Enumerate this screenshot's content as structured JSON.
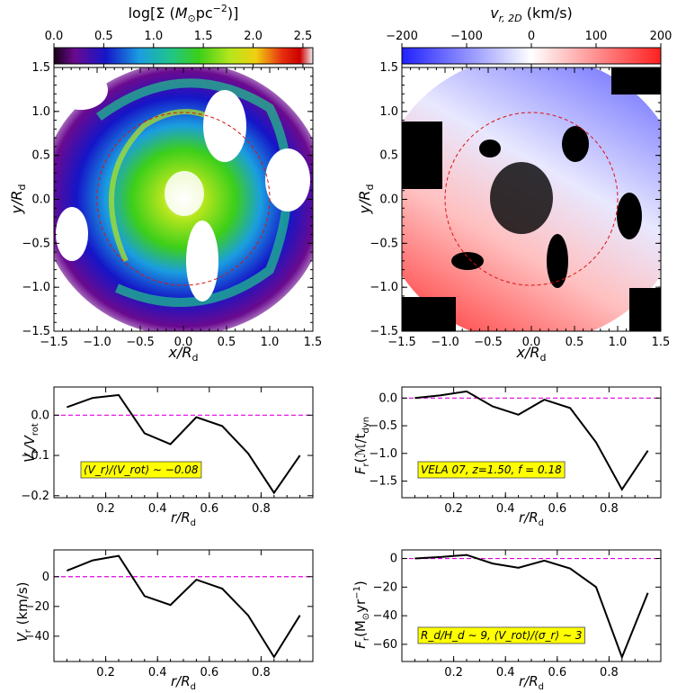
{
  "chart_data": [
    {
      "id": "sigma_map",
      "type": "heatmap",
      "xlabel": "x/R_d",
      "ylabel": "y/R_d",
      "xlim": [
        -1.5,
        1.5
      ],
      "ylim": [
        -1.5,
        1.5
      ],
      "xticks": [
        -1.5,
        -1.0,
        -0.5,
        0.0,
        0.5,
        1.0,
        1.5
      ],
      "yticks": [
        -1.5,
        -1.0,
        -0.5,
        0.0,
        0.5,
        1.0,
        1.5
      ],
      "xtick_labels": [
        "−1.5",
        "−1.0",
        "−0.5",
        "0.0",
        "0.5",
        "1.0",
        "1.5"
      ],
      "ytick_labels": [
        "−1.5",
        "−1.0",
        "−0.5",
        "0.0",
        "0.5",
        "1.0",
        "1.5"
      ],
      "colorbar": {
        "label": "log[Σ (M⊙pc⁻²)]",
        "range": [
          0.0,
          2.6
        ],
        "ticks": [
          0.0,
          0.5,
          1.0,
          1.5,
          2.0,
          2.5
        ],
        "tick_labels": [
          "0.0",
          "0.5",
          "1.0",
          "1.5",
          "2.0",
          "2.5"
        ],
        "colors": [
          "#1a0018",
          "#6a0a8f",
          "#1515c8",
          "#1a9de0",
          "#20c48a",
          "#3ccf1a",
          "#b5e61d",
          "#f0d010",
          "#e83010",
          "#cc0000",
          "#f0f0f0"
        ]
      },
      "circle_radius": 1.0
    },
    {
      "id": "vr_map",
      "type": "heatmap",
      "xlabel": "x/R_d",
      "ylabel": "y/R_d",
      "xlim": [
        -1.5,
        1.5
      ],
      "ylim": [
        -1.5,
        1.5
      ],
      "xticks": [
        -1.5,
        -1.0,
        -0.5,
        0.0,
        0.5,
        1.0,
        1.5
      ],
      "yticks": [
        -1.5,
        -1.0,
        -0.5,
        0.0,
        0.5,
        1.0,
        1.5
      ],
      "xtick_labels": [
        "−1.5",
        "−1.0",
        "−0.5",
        "0.0",
        "0.5",
        "1.0",
        "1.5"
      ],
      "ytick_labels": [
        "−1.5",
        "−1.0",
        "−0.5",
        "0.0",
        "0.5",
        "1.0",
        "1.5"
      ],
      "colorbar": {
        "label": "v_r,2D (km/s)",
        "range": [
          -200,
          200
        ],
        "ticks": [
          -200,
          -100,
          0,
          100,
          200
        ],
        "tick_labels": [
          "−200",
          "−100",
          "0",
          "100",
          "200"
        ],
        "colors": [
          "#2020ff",
          "#9090ff",
          "#ffffff",
          "#ff9090",
          "#ff2020"
        ]
      },
      "circle_radius": 1.0
    },
    {
      "id": "vr_over_vrot",
      "type": "line",
      "xlabel": "r/R_d",
      "ylabel": "V_r/V_rot",
      "x": [
        0.05,
        0.15,
        0.25,
        0.35,
        0.45,
        0.55,
        0.65,
        0.75,
        0.85,
        0.95
      ],
      "values": [
        0.02,
        0.043,
        0.05,
        -0.045,
        -0.072,
        -0.005,
        -0.027,
        -0.095,
        -0.193,
        -0.1
      ],
      "xlim": [
        0.0,
        1.0
      ],
      "ylim": [
        -0.205,
        0.07
      ],
      "xticks": [
        0.2,
        0.4,
        0.6,
        0.8
      ],
      "xtick_labels": [
        "0.2",
        "0.4",
        "0.6",
        "0.8"
      ],
      "yticks": [
        0.0,
        -0.1,
        -0.2
      ],
      "ytick_labels": [
        "0.0",
        "−0.1",
        "−0.2"
      ],
      "reference_line": 0,
      "annotation": "⟨V_r⟩/⟨V_rot⟩ ∼ −0.08"
    },
    {
      "id": "flux_tdyn",
      "type": "line",
      "xlabel": "r/R_d",
      "ylabel": "F_r(ℳ/t_dyn)",
      "x": [
        0.05,
        0.15,
        0.25,
        0.35,
        0.45,
        0.55,
        0.65,
        0.75,
        0.85,
        0.95
      ],
      "values": [
        0.0,
        0.05,
        0.12,
        -0.15,
        -0.3,
        -0.03,
        -0.18,
        -0.8,
        -1.65,
        -0.95
      ],
      "xlim": [
        0.0,
        1.0
      ],
      "ylim": [
        -1.8,
        0.2
      ],
      "xticks": [
        0.2,
        0.4,
        0.6,
        0.8
      ],
      "xtick_labels": [
        "0.2",
        "0.4",
        "0.6",
        "0.8"
      ],
      "yticks": [
        0.0,
        -0.5,
        -1.0,
        -1.5
      ],
      "ytick_labels": [
        "0.0",
        "−0.5",
        "−1.0",
        "−1.5"
      ],
      "reference_line": 0,
      "annotation": "VELA 07, z=1.50, f = 0.18"
    },
    {
      "id": "vr_kms",
      "type": "line",
      "xlabel": "r/R_d",
      "ylabel": "V_r (km/s)",
      "x": [
        0.05,
        0.15,
        0.25,
        0.35,
        0.45,
        0.55,
        0.65,
        0.75,
        0.85,
        0.95
      ],
      "values": [
        4,
        11,
        14,
        -13,
        -19,
        -2,
        -8,
        -26,
        -54,
        -26
      ],
      "xlim": [
        0.0,
        1.0
      ],
      "ylim": [
        -57,
        18
      ],
      "xticks": [
        0.2,
        0.4,
        0.6,
        0.8
      ],
      "xtick_labels": [
        "0.2",
        "0.4",
        "0.6",
        "0.8"
      ],
      "yticks": [
        0,
        -20,
        -40
      ],
      "ytick_labels": [
        "0",
        "−20",
        "−40"
      ],
      "reference_line": 0,
      "annotation": ""
    },
    {
      "id": "flux_msun",
      "type": "line",
      "xlabel": "r/R_d",
      "ylabel": "F_r(M⊙yr⁻¹)",
      "x": [
        0.05,
        0.15,
        0.25,
        0.35,
        0.45,
        0.55,
        0.65,
        0.75,
        0.85,
        0.95
      ],
      "values": [
        0,
        1,
        2.5,
        -3.5,
        -6.5,
        -1.5,
        -7,
        -20,
        -69,
        -24
      ],
      "xlim": [
        0.0,
        1.0
      ],
      "ylim": [
        -72,
        6
      ],
      "xticks": [
        0.2,
        0.4,
        0.6,
        0.8
      ],
      "xtick_labels": [
        "0.2",
        "0.4",
        "0.6",
        "0.8"
      ],
      "yticks": [
        0,
        -20,
        -40,
        -60
      ],
      "ytick_labels": [
        "0",
        "−20",
        "−40",
        "−60"
      ],
      "reference_line": 0,
      "annotation": "R_d/H_d ∼ 9, ⟨V_rot⟩/⟨σ_r⟩ ∼ 3"
    }
  ],
  "labels": {
    "sigma_colorbar_title": "log[Σ (",
    "sigma_colorbar_unit": "M",
    "sigma_colorbar_tail": "pc",
    "sigma_colorbar_exp": "−2",
    "vr_colorbar_title_v": "v",
    "vr_colorbar_title_sub": "r, 2D",
    "vr_colorbar_title_tail": " (km/s)",
    "axis_x_main": "x/R",
    "axis_y_main": "y/R",
    "axis_r_main": "r/R",
    "sub_d": "d",
    "ylabel_vr_vrot_a": "V",
    "ylabel_vr_vrot_sub1": "r",
    "ylabel_vr_vrot_b": "/V",
    "ylabel_vr_vrot_sub2": "rot",
    "ylabel_flux_a": "F",
    "ylabel_flux_sub": "r",
    "ylabel_flux_b": "(ℳ/t",
    "ylabel_flux_sub2": "dyn",
    "ylabel_vr_kms_a": "V",
    "ylabel_vr_kms_sub": "r",
    "ylabel_vr_kms_b": " (km/s)",
    "ylabel_fluxm_a": "F",
    "ylabel_fluxm_sub": "r",
    "ylabel_fluxm_b": "(M",
    "ylabel_fluxm_c": "yr",
    "ylabel_fluxm_exp": "−1",
    "ylabel_fluxm_d": ")"
  },
  "colors": {
    "line": "#000000",
    "reference": "#e000e0",
    "circle": "#dd1111",
    "annotation_bg": "#ffff00",
    "annotation_text": "#dd0000"
  }
}
